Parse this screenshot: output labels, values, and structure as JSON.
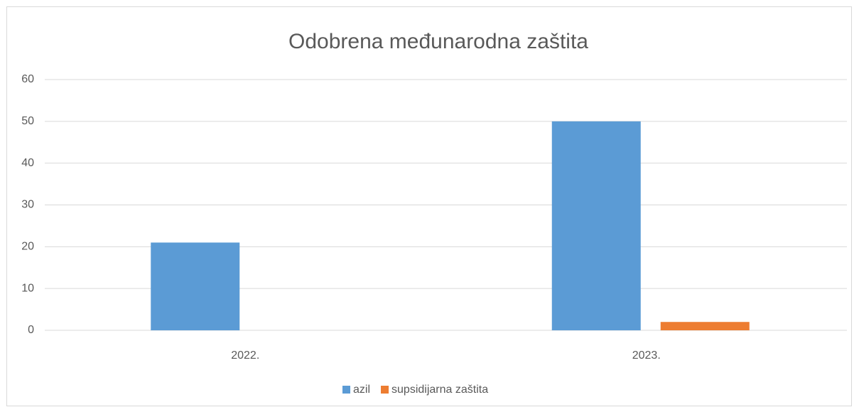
{
  "chart_data": {
    "type": "bar",
    "title": "Odobrena međunarodna zaštita",
    "categories": [
      "2022.",
      "2023."
    ],
    "series": [
      {
        "name": "azil",
        "color": "#5b9bd5",
        "values": [
          21,
          50
        ]
      },
      {
        "name": "supsidijarna zaštita",
        "color": "#ed7d31",
        "values": [
          0,
          2
        ]
      }
    ],
    "ylim": [
      0,
      60
    ],
    "yticks": [
      0,
      10,
      20,
      30,
      40,
      50,
      60
    ],
    "grid": true,
    "legend": "bottom"
  }
}
